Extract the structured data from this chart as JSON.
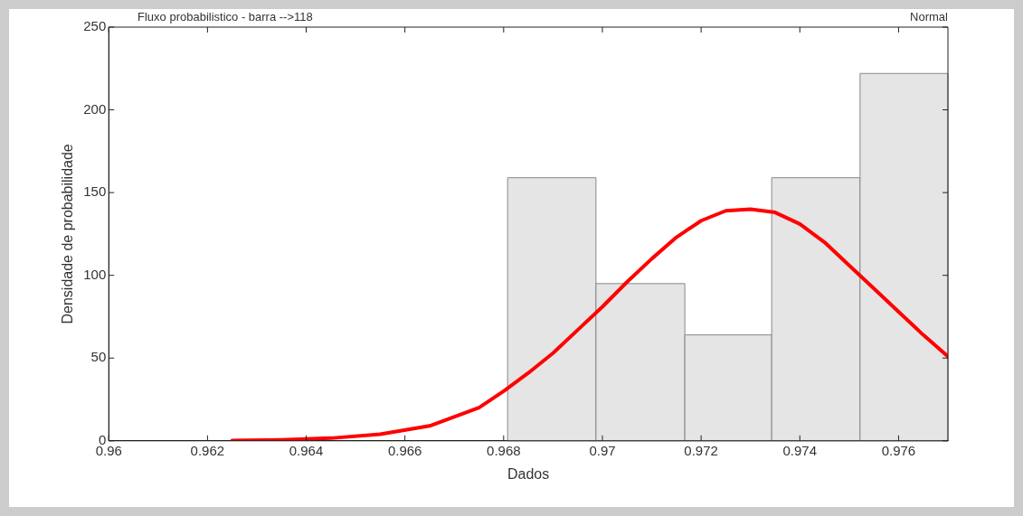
{
  "chart_data": {
    "type": "histogram",
    "title": "Fluxo probabilistico - barra -->118",
    "xlabel": "Dados",
    "ylabel": "Densidade de probabilidade",
    "bins": [
      0.96808,
      0.96987,
      0.97167,
      0.97343,
      0.97522,
      0.977
    ],
    "values": [
      159,
      95,
      64,
      159,
      222
    ],
    "color": "#e5e5e5",
    "series": [
      {
        "type": "line",
        "color": "#ff0000",
        "x": [
          0.9625,
          0.9635,
          0.9645,
          0.9655,
          0.9665,
          0.9675,
          0.968,
          0.9685,
          0.969,
          0.9695,
          0.97,
          0.9705,
          0.971,
          0.9715,
          0.972,
          0.9725,
          0.973,
          0.9735,
          0.974,
          0.9745,
          0.975,
          0.9755,
          0.976,
          0.9765,
          0.977
        ],
        "values": [
          0.2,
          0.6,
          1.6,
          4,
          9,
          20,
          30,
          41,
          53,
          67,
          81,
          96,
          110,
          123,
          133,
          139,
          140,
          138,
          131,
          120,
          106,
          92,
          78,
          64,
          51
        ]
      }
    ],
    "annotations": [
      "Normal"
    ],
    "xlim": [
      0.96,
      0.977
    ],
    "xticks": [
      0.96,
      0.962,
      0.964,
      0.966,
      0.968,
      0.97,
      0.972,
      0.974,
      0.976
    ],
    "ylim": [
      0,
      250
    ],
    "yticks": [
      0,
      50,
      100,
      150,
      200,
      250
    ],
    "grid": false,
    "legend": false,
    "marker": "none",
    "line_style": "solid"
  }
}
